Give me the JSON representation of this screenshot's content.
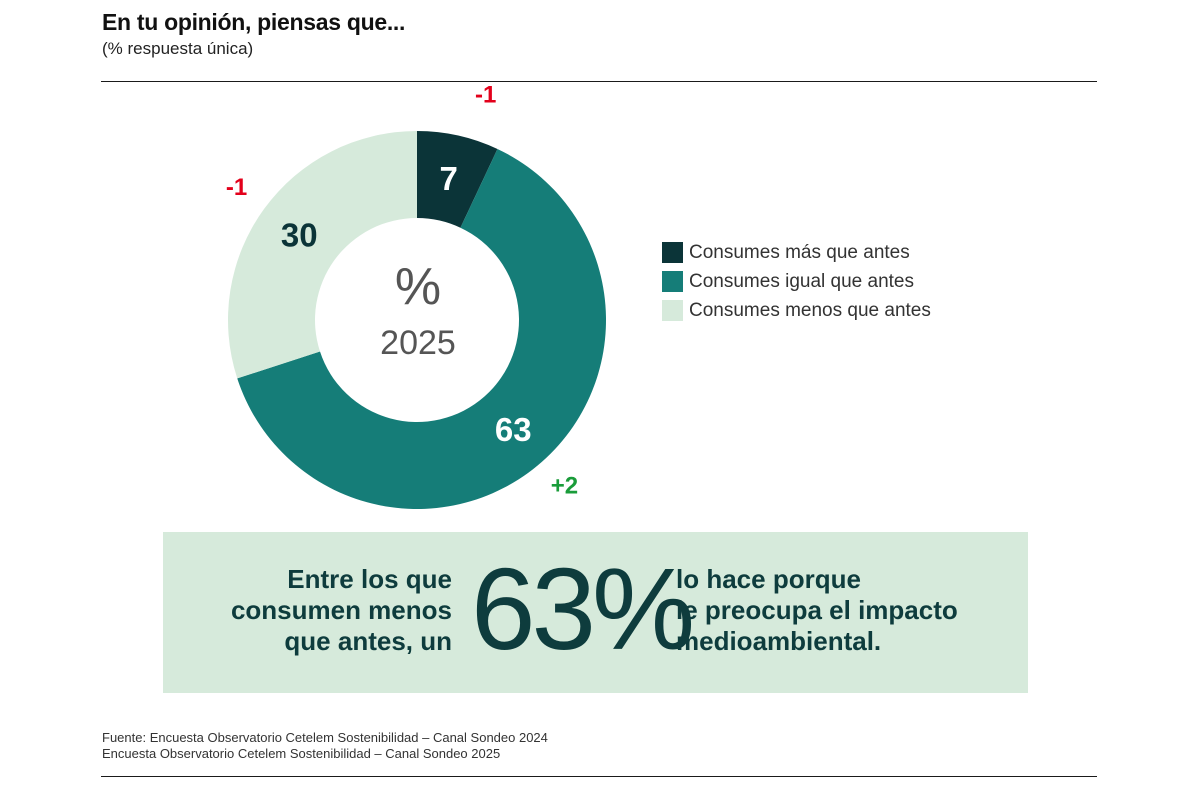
{
  "header": {
    "title": "En tu opinión, piensas que...",
    "subtitle": "(% respuesta única)"
  },
  "chart_data": {
    "type": "pie",
    "variant": "donut",
    "center_label": {
      "line1": "%",
      "line2": "2025"
    },
    "series": [
      {
        "name": "Consumes más que antes",
        "value": 7,
        "change": "-1",
        "color": "#0b3438"
      },
      {
        "name": "Consumes igual que antes",
        "value": 63,
        "change": "+2",
        "color": "#157d78"
      },
      {
        "name": "Consumes menos que antes",
        "value": 30,
        "change": "-1",
        "color": "#d6eadb"
      }
    ],
    "change_colors": {
      "negative": "#e3001b",
      "positive": "#1a9c3a"
    },
    "legend_position": "right"
  },
  "callout": {
    "left_lines": [
      "Entre los que",
      "consumen menos",
      "que antes, un"
    ],
    "big_value": "63%",
    "right_lines": [
      "lo hace porque",
      "le preocupa el impacto",
      "medioambiental."
    ]
  },
  "source": {
    "line1": "Fuente: Encuesta Observatorio Cetelem Sostenibilidad – Canal Sondeo 2024",
    "line2": "Encuesta Observatorio Cetelem Sostenibilidad – Canal Sondeo 2025"
  }
}
